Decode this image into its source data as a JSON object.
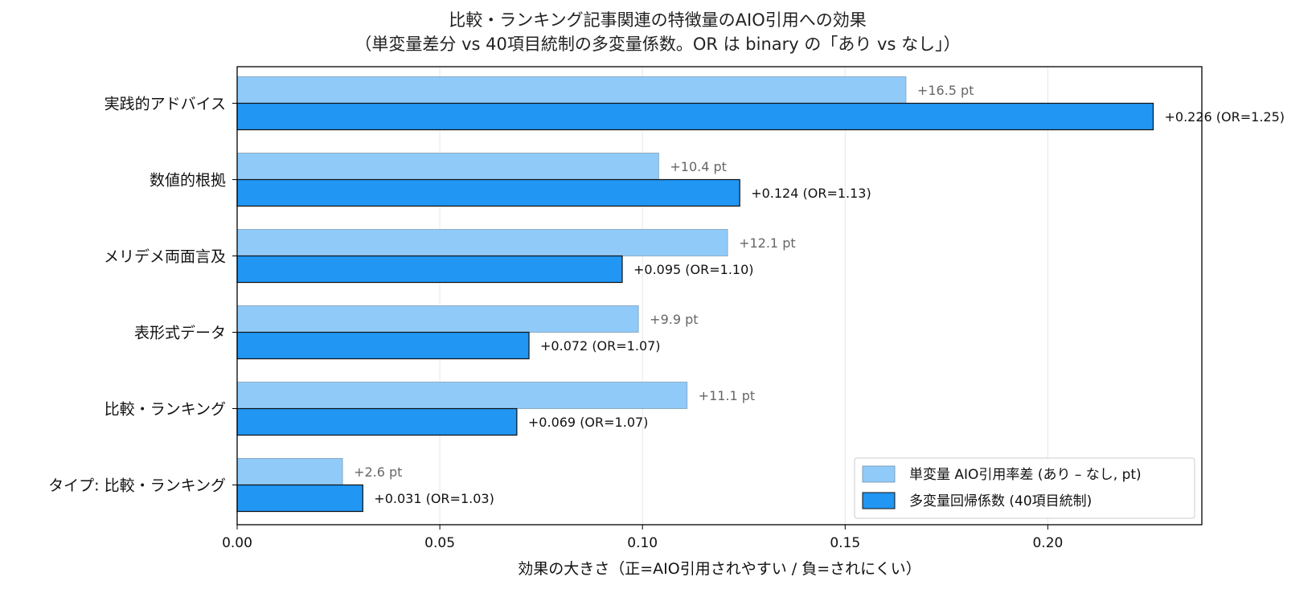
{
  "chart_data": {
    "type": "bar",
    "orientation": "horizontal",
    "title": "比較・ランキング記事関連の特徴量のAIO引用への効果",
    "subtitle": "（単変量差分 vs 40項目統制の多変量係数。OR は binary の「あり vs なし」）",
    "xlabel": "効果の大きさ（正=AIO引用されやすい / 負=されにくい）",
    "ylabel": "",
    "xlim": [
      0,
      0.238
    ],
    "xticks": [
      0.0,
      0.05,
      0.1,
      0.15,
      0.2
    ],
    "xtick_labels": [
      "0.00",
      "0.05",
      "0.10",
      "0.15",
      "0.20"
    ],
    "grid": "vertical",
    "legend_position": "lower-right",
    "categories": [
      "実践的アドバイス",
      "数値的根拠",
      "メリデメ両面言及",
      "表形式データ",
      "比較・ランキング",
      "タイプ: 比較・ランキング"
    ],
    "series": [
      {
        "name": "単変量 AIO引用率差 (あり – なし, pt)",
        "color": "#90CAF9",
        "values": [
          0.165,
          0.104,
          0.121,
          0.099,
          0.111,
          0.026
        ],
        "labels": [
          "+16.5 pt",
          "+10.4 pt",
          "+12.1 pt",
          "+9.9 pt",
          "+11.1 pt",
          "+2.6 pt"
        ]
      },
      {
        "name": "多変量回帰係数 (40項目統制)",
        "color": "#2196F3",
        "values": [
          0.226,
          0.124,
          0.095,
          0.072,
          0.069,
          0.031
        ],
        "labels": [
          "+0.226  (OR=1.25)",
          "+0.124  (OR=1.13)",
          "+0.095  (OR=1.10)",
          "+0.072  (OR=1.07)",
          "+0.069  (OR=1.07)",
          "+0.031  (OR=1.03)"
        ]
      }
    ]
  }
}
